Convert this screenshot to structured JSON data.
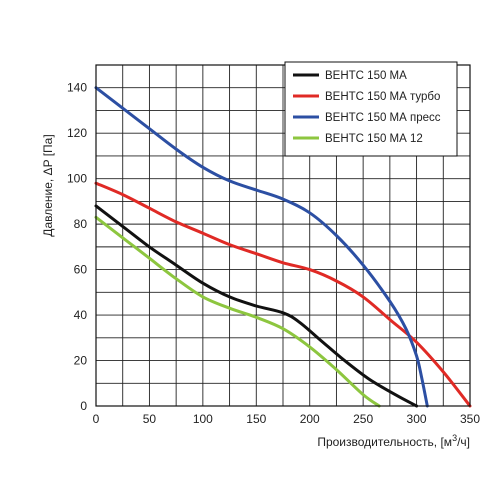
{
  "chart_data": {
    "type": "line",
    "xlabel": "Производительность, [м",
    "xlabel_sup": "3",
    "xlabel_tail": "/ч]",
    "ylabel": "Давление, ΔP [Па]",
    "xlim": [
      0,
      350
    ],
    "ylim": [
      0,
      150
    ],
    "x_major_ticks": [
      0,
      50,
      100,
      150,
      200,
      250,
      300,
      350
    ],
    "y_major_ticks": [
      0,
      20,
      40,
      60,
      80,
      100,
      120,
      140
    ],
    "x_grid_step": 25,
    "y_grid_step": 10,
    "grid": true,
    "legend_position": "top-right",
    "series": [
      {
        "name": "ВЕНТС 150 МА",
        "color": "#111111",
        "points": [
          [
            0,
            88
          ],
          [
            25,
            79
          ],
          [
            50,
            70
          ],
          [
            75,
            62
          ],
          [
            100,
            54
          ],
          [
            125,
            48
          ],
          [
            150,
            44
          ],
          [
            175,
            41
          ],
          [
            190,
            37
          ],
          [
            210,
            29
          ],
          [
            230,
            21
          ],
          [
            255,
            12
          ],
          [
            280,
            5
          ],
          [
            300,
            0
          ]
        ]
      },
      {
        "name": "ВЕНТС 150 МА турбо",
        "color": "#e02a25",
        "points": [
          [
            0,
            98
          ],
          [
            25,
            93
          ],
          [
            50,
            87
          ],
          [
            75,
            81
          ],
          [
            100,
            76
          ],
          [
            125,
            71
          ],
          [
            150,
            67
          ],
          [
            175,
            63
          ],
          [
            200,
            60
          ],
          [
            225,
            55
          ],
          [
            250,
            48
          ],
          [
            275,
            38
          ],
          [
            300,
            28
          ],
          [
            325,
            15
          ],
          [
            350,
            0
          ]
        ]
      },
      {
        "name": "ВЕНТС 150 МА пресс",
        "color": "#2c4fa3",
        "points": [
          [
            0,
            140
          ],
          [
            25,
            131
          ],
          [
            50,
            122
          ],
          [
            75,
            113
          ],
          [
            100,
            105
          ],
          [
            125,
            99
          ],
          [
            150,
            95
          ],
          [
            175,
            91
          ],
          [
            200,
            85
          ],
          [
            225,
            75
          ],
          [
            250,
            62
          ],
          [
            275,
            46
          ],
          [
            290,
            34
          ],
          [
            300,
            22
          ],
          [
            305,
            12
          ],
          [
            310,
            0
          ]
        ]
      },
      {
        "name": "ВЕНТС 150 МА  12",
        "color": "#8dc63f",
        "points": [
          [
            0,
            83
          ],
          [
            25,
            74
          ],
          [
            50,
            65
          ],
          [
            75,
            56
          ],
          [
            100,
            48
          ],
          [
            125,
            43
          ],
          [
            150,
            39
          ],
          [
            175,
            34
          ],
          [
            200,
            26
          ],
          [
            225,
            16
          ],
          [
            250,
            5
          ],
          [
            265,
            0
          ]
        ]
      }
    ]
  }
}
